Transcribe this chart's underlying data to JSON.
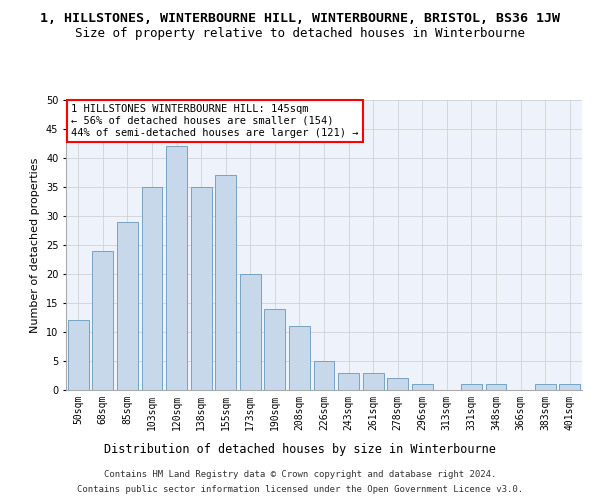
{
  "title": "1, HILLSTONES, WINTERBOURNE HILL, WINTERBOURNE, BRISTOL, BS36 1JW",
  "subtitle": "Size of property relative to detached houses in Winterbourne",
  "xlabel": "Distribution of detached houses by size in Winterbourne",
  "ylabel": "Number of detached properties",
  "categories": [
    "50sqm",
    "68sqm",
    "85sqm",
    "103sqm",
    "120sqm",
    "138sqm",
    "155sqm",
    "173sqm",
    "190sqm",
    "208sqm",
    "226sqm",
    "243sqm",
    "261sqm",
    "278sqm",
    "296sqm",
    "313sqm",
    "331sqm",
    "348sqm",
    "366sqm",
    "383sqm",
    "401sqm"
  ],
  "values": [
    12,
    24,
    29,
    35,
    42,
    35,
    37,
    20,
    14,
    11,
    5,
    3,
    3,
    2,
    1,
    0,
    1,
    1,
    0,
    1,
    1
  ],
  "bar_color": "#c8d8eb",
  "bar_edge_color": "#6699bb",
  "ylim": [
    0,
    50
  ],
  "yticks": [
    0,
    5,
    10,
    15,
    20,
    25,
    30,
    35,
    40,
    45,
    50
  ],
  "grid_color": "#cccccc",
  "bg_color": "#eef2fa",
  "annotation_text": "1 HILLSTONES WINTERBOURNE HILL: 145sqm\n← 56% of detached houses are smaller (154)\n44% of semi-detached houses are larger (121) →",
  "annotation_box_color": "white",
  "annotation_box_edge": "red",
  "footer_line1": "Contains HM Land Registry data © Crown copyright and database right 2024.",
  "footer_line2": "Contains public sector information licensed under the Open Government Licence v3.0.",
  "title_fontsize": 9.5,
  "subtitle_fontsize": 9,
  "xlabel_fontsize": 8.5,
  "ylabel_fontsize": 8,
  "tick_fontsize": 7,
  "annotation_fontsize": 7.5,
  "footer_fontsize": 6.5
}
